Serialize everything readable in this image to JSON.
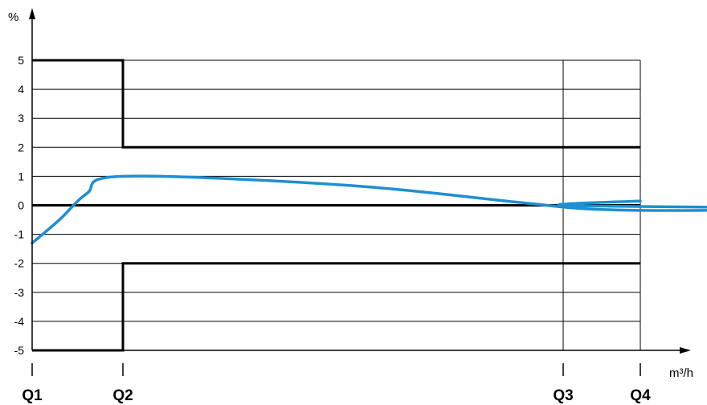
{
  "chart_data": {
    "type": "line",
    "ylabel": "%",
    "xlabel": "m³/h",
    "ylim": [
      -5,
      5
    ],
    "y_ticks": [
      "5",
      "4",
      "3",
      "2",
      "1",
      "0",
      "-1",
      "-2",
      "-3",
      "-4",
      "-5"
    ],
    "x_tick_labels": [
      "Q1",
      "Q2",
      "Q3",
      "Q4"
    ],
    "grid": true,
    "legend": "none",
    "series": [
      {
        "role": "upper-limit",
        "color": "#000000",
        "points": [
          [
            "Q1",
            5
          ],
          [
            "Q2",
            5
          ],
          [
            "Q2",
            2
          ],
          [
            "Q4",
            2
          ]
        ]
      },
      {
        "role": "lower-limit",
        "color": "#000000",
        "points": [
          [
            "Q1",
            -5
          ],
          [
            "Q2",
            -5
          ],
          [
            "Q2",
            -2
          ],
          [
            "Q4",
            -2
          ]
        ]
      },
      {
        "role": "error-curve",
        "color": "#1e8fd0",
        "points": [
          [
            "Q1",
            -1.3
          ],
          [
            0.3,
            -0.5
          ],
          [
            0.6,
            0.4
          ],
          [
            "Q2",
            1.0
          ],
          [
            1.5,
            0.7
          ],
          [
            1.9,
            0.1
          ],
          [
            2.3,
            -0.12
          ],
          [
            3.5,
            -0.18
          ],
          [
            5.0,
            -0.1
          ],
          [
            "Q3",
            0.0
          ],
          [
            "Q4",
            0.15
          ]
        ]
      }
    ]
  }
}
